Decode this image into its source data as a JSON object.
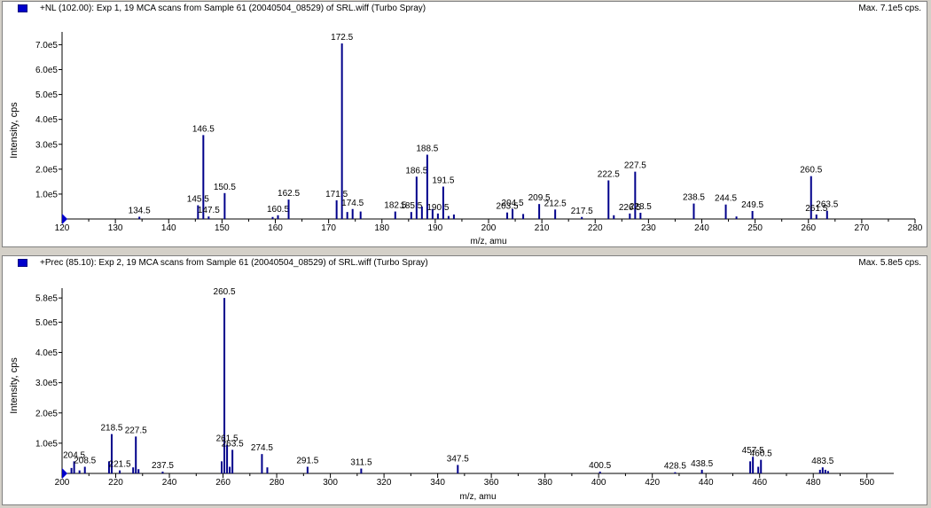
{
  "colors": {
    "series": "#00008b",
    "axis": "#000000",
    "swatch": "#0000cc"
  },
  "chart_data": [
    {
      "type": "bar",
      "title": "+NL (102.00): Exp 1, 19 MCA scans from Sample 61 (20040504_08529) of SRL.wiff (Turbo Spray)",
      "max_label": "Max. 7.1e5 cps.",
      "xlabel": "m/z, amu",
      "ylabel": "Intensity, cps",
      "xlim": [
        120,
        280
      ],
      "ylim": [
        0,
        730000.0
      ],
      "xticks": [
        120,
        130,
        140,
        150,
        160,
        170,
        180,
        190,
        200,
        210,
        220,
        230,
        240,
        250,
        260,
        270,
        280
      ],
      "yticks": [
        {
          "v": 100000.0,
          "label": "1.0e5"
        },
        {
          "v": 200000.0,
          "label": "2.0e5"
        },
        {
          "v": 300000.0,
          "label": "3.0e5"
        },
        {
          "v": 400000.0,
          "label": "4.0e5"
        },
        {
          "v": 500000.0,
          "label": "5.0e5"
        },
        {
          "v": 600000.0,
          "label": "6.0e5"
        },
        {
          "v": 700000.0,
          "label": "7.0e5"
        }
      ],
      "peaks": [
        {
          "x": 134.5,
          "y": 9000,
          "label": "134.5"
        },
        {
          "x": 145.5,
          "y": 55000,
          "label": "145.5"
        },
        {
          "x": 146.5,
          "y": 337000,
          "label": "146.5"
        },
        {
          "x": 147.5,
          "y": 10000,
          "label": "147.5"
        },
        {
          "x": 150.5,
          "y": 104000,
          "label": "150.5"
        },
        {
          "x": 159.5,
          "y": 8000
        },
        {
          "x": 160.5,
          "y": 15000,
          "label": "160.5"
        },
        {
          "x": 162.5,
          "y": 78000,
          "label": "162.5"
        },
        {
          "x": 171.5,
          "y": 75000,
          "label": "171.5"
        },
        {
          "x": 172.5,
          "y": 705000,
          "label": "172.5"
        },
        {
          "x": 173.5,
          "y": 28000
        },
        {
          "x": 174.5,
          "y": 40000,
          "label": "174.5"
        },
        {
          "x": 176.0,
          "y": 30000
        },
        {
          "x": 182.5,
          "y": 30000,
          "label": "182.5"
        },
        {
          "x": 185.5,
          "y": 28000,
          "label": "185.5"
        },
        {
          "x": 186.5,
          "y": 170000,
          "label": "186.5"
        },
        {
          "x": 187.5,
          "y": 50000
        },
        {
          "x": 188.5,
          "y": 258000,
          "label": "188.5"
        },
        {
          "x": 189.5,
          "y": 40000
        },
        {
          "x": 190.5,
          "y": 22000,
          "label": "190.5"
        },
        {
          "x": 191.5,
          "y": 130000,
          "label": "191.5"
        },
        {
          "x": 192.5,
          "y": 12000
        },
        {
          "x": 193.5,
          "y": 18000
        },
        {
          "x": 203.5,
          "y": 26000,
          "label": "203.5"
        },
        {
          "x": 204.5,
          "y": 40000,
          "label": "204.5"
        },
        {
          "x": 206.5,
          "y": 20000
        },
        {
          "x": 209.5,
          "y": 60000,
          "label": "209.5"
        },
        {
          "x": 212.5,
          "y": 38000,
          "label": "212.5"
        },
        {
          "x": 217.5,
          "y": 8000,
          "label": "217.5"
        },
        {
          "x": 222.5,
          "y": 155000,
          "label": "222.5"
        },
        {
          "x": 223.5,
          "y": 15000
        },
        {
          "x": 226.5,
          "y": 22000,
          "label": "226.5"
        },
        {
          "x": 227.5,
          "y": 190000,
          "label": "227.5"
        },
        {
          "x": 228.5,
          "y": 25000,
          "label": "228.5"
        },
        {
          "x": 238.5,
          "y": 62000,
          "label": "238.5"
        },
        {
          "x": 244.5,
          "y": 58000,
          "label": "244.5"
        },
        {
          "x": 246.5,
          "y": 10000
        },
        {
          "x": 249.5,
          "y": 32000,
          "label": "249.5"
        },
        {
          "x": 260.5,
          "y": 172000,
          "label": "260.5"
        },
        {
          "x": 261.5,
          "y": 18000,
          "label": "261.5"
        },
        {
          "x": 263.5,
          "y": 33000,
          "label": "263.5"
        }
      ]
    },
    {
      "type": "bar",
      "title": "+Prec (85.10): Exp 2, 19 MCA scans from Sample 61 (20040504_08529) of SRL.wiff (Turbo Spray)",
      "max_label": "Max. 5.8e5 cps.",
      "xlabel": "m/z, amu",
      "ylabel": "Intensity, cps",
      "xlim": [
        200,
        510
      ],
      "ylim": [
        0,
        595000.0
      ],
      "xticks": [
        200,
        220,
        240,
        260,
        280,
        300,
        320,
        340,
        360,
        380,
        400,
        420,
        440,
        460,
        480,
        500
      ],
      "yticks": [
        {
          "v": 100000.0,
          "label": "1.0e5"
        },
        {
          "v": 200000.0,
          "label": "2.0e5"
        },
        {
          "v": 300000.0,
          "label": "3.0e5"
        },
        {
          "v": 400000.0,
          "label": "4.0e5"
        },
        {
          "v": 500000.0,
          "label": "5.0e5"
        },
        {
          "v": 580000.0,
          "label": "5.8e5"
        }
      ],
      "peaks": [
        {
          "x": 203.5,
          "y": 18000
        },
        {
          "x": 204.5,
          "y": 40000,
          "label": "204.5"
        },
        {
          "x": 206.5,
          "y": 10000
        },
        {
          "x": 208.5,
          "y": 22000,
          "label": "208.5"
        },
        {
          "x": 217.5,
          "y": 40000
        },
        {
          "x": 218.5,
          "y": 130000,
          "label": "218.5"
        },
        {
          "x": 221.5,
          "y": 10000,
          "label": "221.5"
        },
        {
          "x": 226.5,
          "y": 20000
        },
        {
          "x": 227.5,
          "y": 122000,
          "label": "227.5"
        },
        {
          "x": 228.5,
          "y": 14000
        },
        {
          "x": 237.5,
          "y": 6000,
          "label": "237.5"
        },
        {
          "x": 259.5,
          "y": 40000
        },
        {
          "x": 260.5,
          "y": 580000,
          "label": "260.5"
        },
        {
          "x": 261.5,
          "y": 95000,
          "label": "261.5"
        },
        {
          "x": 262.5,
          "y": 22000
        },
        {
          "x": 263.5,
          "y": 78000,
          "label": "263.5"
        },
        {
          "x": 274.5,
          "y": 64000,
          "label": "274.5"
        },
        {
          "x": 276.5,
          "y": 20000
        },
        {
          "x": 291.5,
          "y": 22000,
          "label": "291.5"
        },
        {
          "x": 311.5,
          "y": 16000,
          "label": "311.5"
        },
        {
          "x": 347.5,
          "y": 28000,
          "label": "347.5"
        },
        {
          "x": 400.5,
          "y": 6000,
          "label": "400.5"
        },
        {
          "x": 428.5,
          "y": 4000,
          "label": "428.5"
        },
        {
          "x": 438.5,
          "y": 12000,
          "label": "438.5"
        },
        {
          "x": 456.5,
          "y": 40000
        },
        {
          "x": 457.5,
          "y": 55000,
          "label": "457.5"
        },
        {
          "x": 459.5,
          "y": 22000
        },
        {
          "x": 460.5,
          "y": 45000,
          "label": "460.5"
        },
        {
          "x": 482.5,
          "y": 12000
        },
        {
          "x": 483.5,
          "y": 20000,
          "label": "483.5"
        },
        {
          "x": 484.5,
          "y": 12000
        },
        {
          "x": 485.5,
          "y": 8000
        }
      ]
    }
  ]
}
